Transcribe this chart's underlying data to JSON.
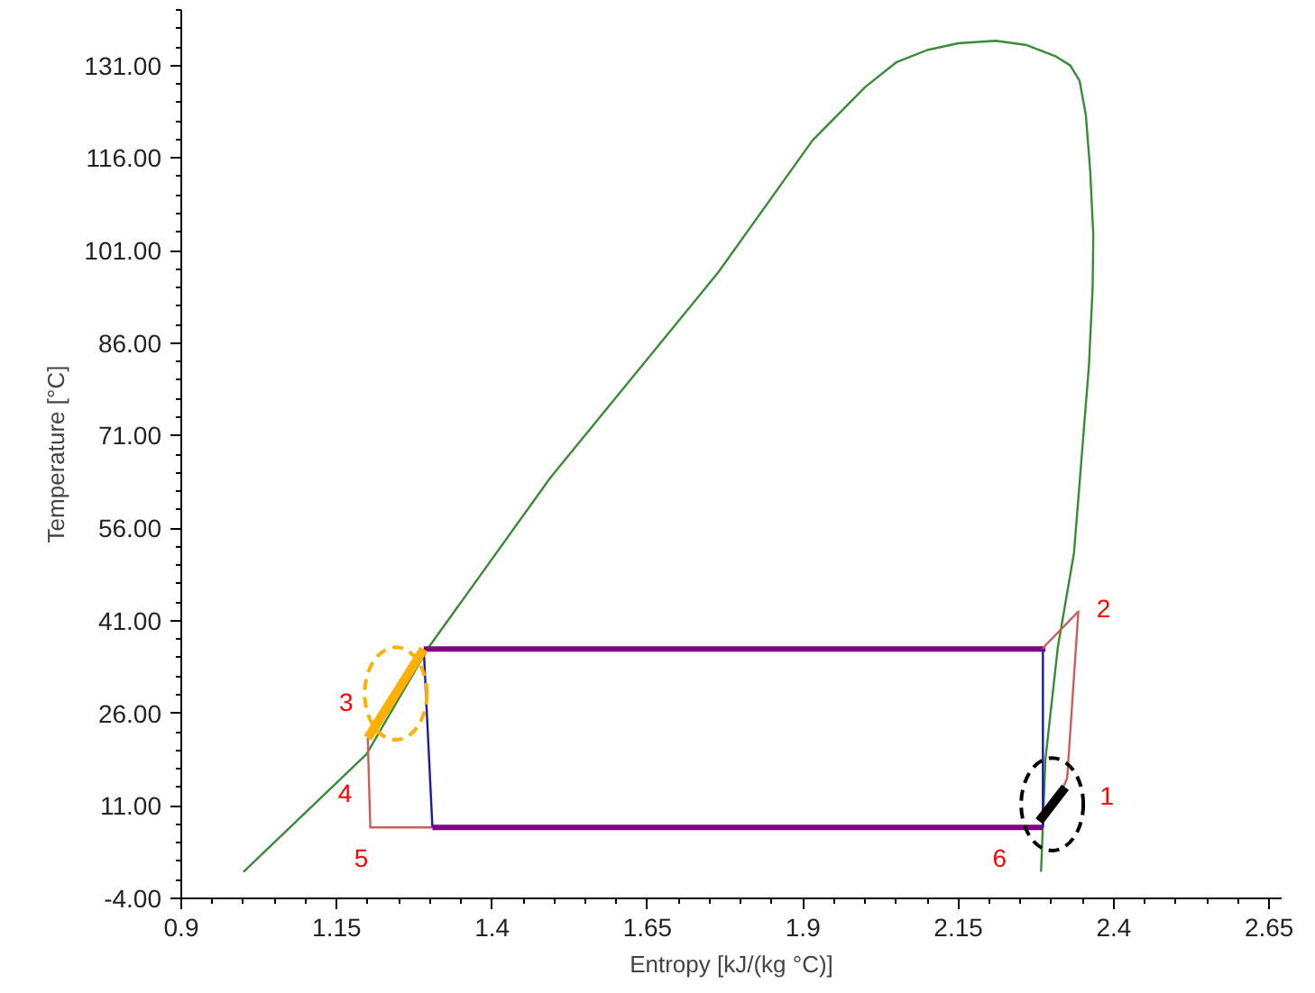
{
  "chart_data": {
    "type": "line",
    "xlabel": "Entropy [kJ/(kg °C)]",
    "ylabel": "Temperature [°C]",
    "xlim": [
      0.9,
      2.67
    ],
    "ylim": [
      -4,
      140
    ],
    "xticks": [
      0.9,
      1.15,
      1.4,
      1.65,
      1.9,
      2.15,
      2.4,
      2.65
    ],
    "yticks": [
      {
        "value": -4,
        "label": "-4.00"
      },
      {
        "value": 11,
        "label": "11.00"
      },
      {
        "value": 26,
        "label": "26.00"
      },
      {
        "value": 41,
        "label": "41.00"
      },
      {
        "value": 56,
        "label": "56.00"
      },
      {
        "value": 71,
        "label": "71.00"
      },
      {
        "value": 86,
        "label": "86.00"
      },
      {
        "value": 101,
        "label": "101.00"
      },
      {
        "value": 116,
        "label": "116.00"
      },
      {
        "value": 131,
        "label": "131.00"
      }
    ],
    "grid": false,
    "marker": "none",
    "line_style": "solid",
    "series": [
      {
        "color": "#3a8a3a",
        "x": [
          1.0,
          1.198,
          1.298,
          1.493,
          1.764,
          1.915,
          2.0,
          2.05,
          2.1,
          2.15,
          2.21,
          2.26,
          2.306,
          2.33,
          2.345,
          2.355,
          2.362,
          2.367,
          2.366,
          2.36,
          2.336,
          2.31,
          2.29,
          2.283
        ],
        "values": [
          0.3,
          19.4,
          36.7,
          64.1,
          97.5,
          118.8,
          127.5,
          131.5,
          133.5,
          134.6,
          135,
          134.3,
          132.5,
          131,
          128.5,
          123,
          114,
          103.6,
          95,
          82.3,
          52,
          36.7,
          18.5,
          0.3
        ]
      },
      {
        "color": "#800080",
        "x": [
          1.29,
          2.29,
          null,
          1.304,
          2.286
        ],
        "values": [
          36.4,
          36.4,
          null,
          7.5,
          7.5
        ]
      },
      {
        "color": "#cd5c5c",
        "x": [
          2.286,
          2.29,
          2.343,
          2.325,
          2.31,
          null,
          1.2,
          1.204,
          1.304
        ],
        "values": [
          36.4,
          37,
          42.5,
          15.5,
          12,
          null,
          22,
          7.5,
          7.5
        ]
      },
      {
        "color": "#1a1aa8",
        "x": [
          1.29,
          1.304,
          null,
          2.286,
          2.286
        ],
        "values": [
          36.4,
          7.5,
          null,
          7.5,
          36.4
        ]
      },
      {
        "color": "#ffb000",
        "x": [
          1.2,
          1.29
        ],
        "values": [
          22,
          36.4
        ]
      },
      {
        "color": "#000000",
        "x": [
          2.28,
          2.322
        ],
        "values": [
          8.5,
          14
        ]
      }
    ],
    "annotations": [
      {
        "text": "1",
        "x": 2.325,
        "y": 15.5
      },
      {
        "text": "2",
        "x": 2.343,
        "y": 42.5
      },
      {
        "text": "3",
        "x": 1.2,
        "y": 22
      },
      {
        "text": "4",
        "x": 1.204,
        "y": 7.5
      },
      {
        "text": "5",
        "x": 1.204,
        "y": 7.5
      },
      {
        "text": "6",
        "x": 2.286,
        "y": 7.5
      }
    ]
  }
}
